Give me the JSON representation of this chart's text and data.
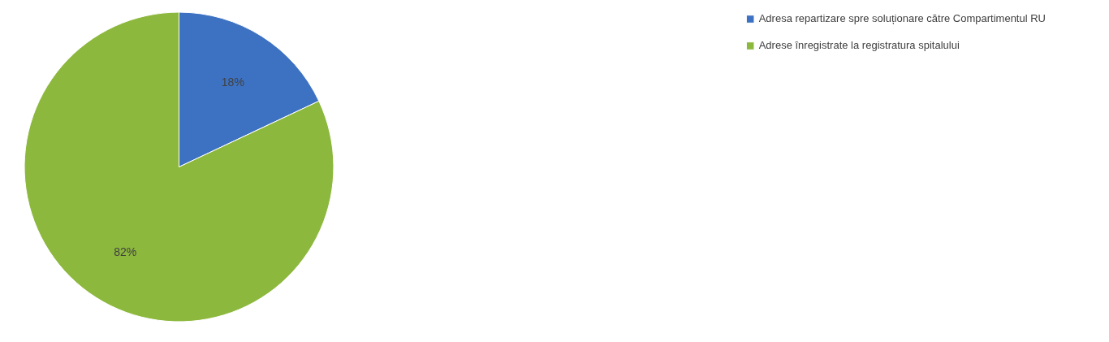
{
  "chart_data": {
    "type": "pie",
    "categories": [
      "Adresa repartizare spre soluționare către Compartimentul RU",
      "Adrese înregistrate la registratura spitalului"
    ],
    "values": [
      18,
      82
    ],
    "colors": [
      "#3d72c2",
      "#8db83e"
    ],
    "value_labels": [
      "18%",
      "82%"
    ],
    "legend": "right"
  }
}
